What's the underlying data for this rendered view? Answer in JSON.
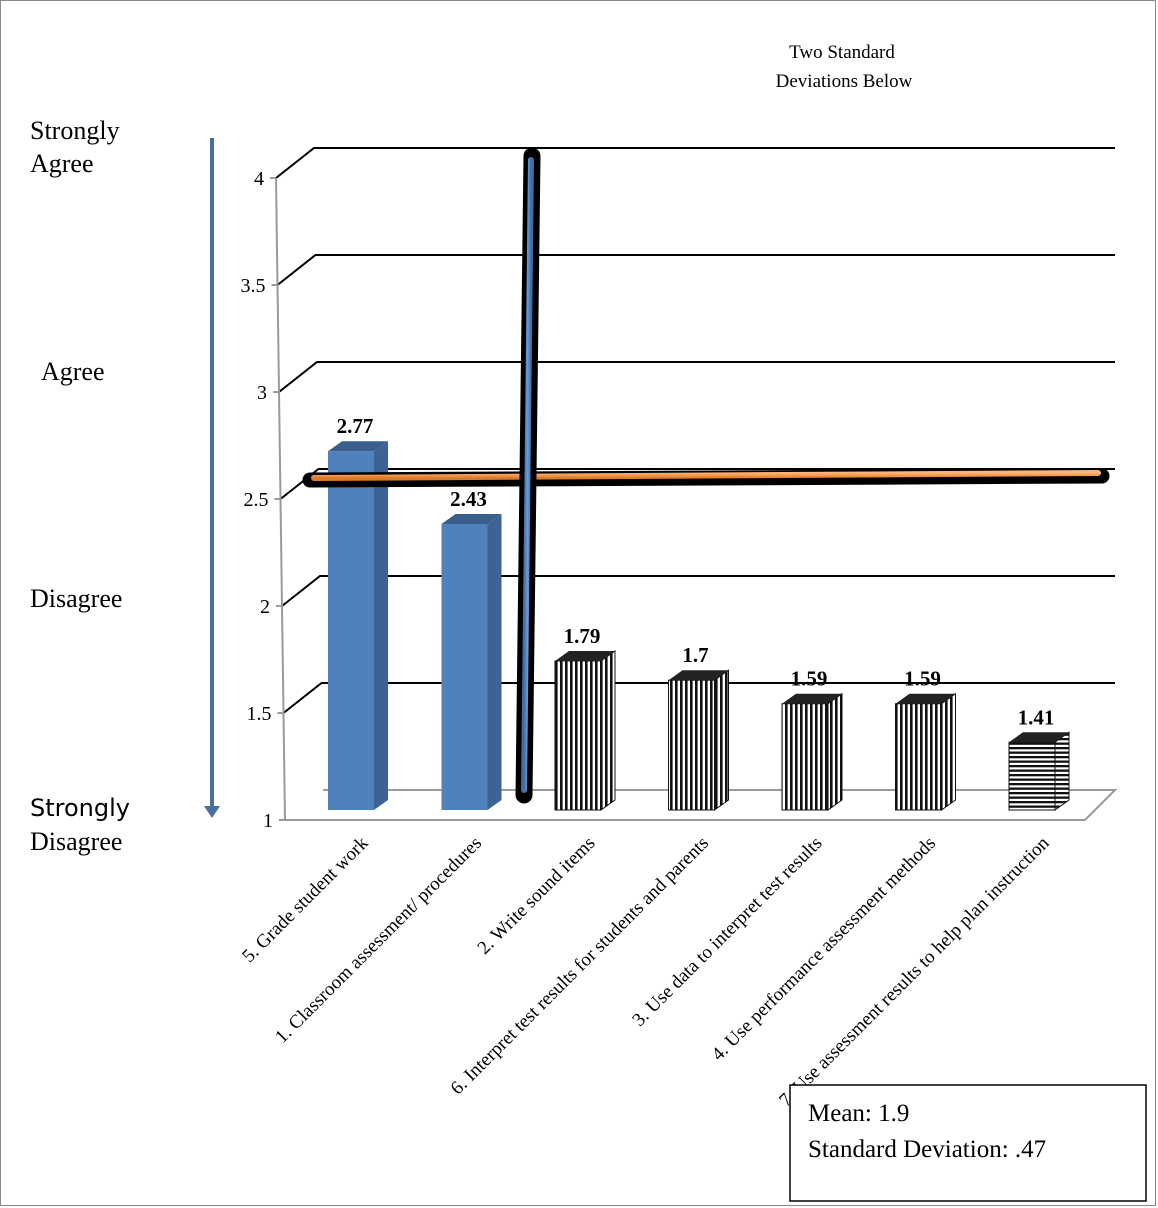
{
  "annotation_top": [
    "Two Standard",
    "Deviations Below"
  ],
  "scale_labels": {
    "strongly_agree": [
      "Strongly",
      "Agree"
    ],
    "agree": "Agree",
    "disagree": "Disagree",
    "strongly_disagree": [
      "Strongly",
      "Disagree"
    ]
  },
  "stats_box": {
    "mean": "Mean:  1.9",
    "sd": "Standard Deviation: .47"
  },
  "colors": {
    "blue_bar": "#4f81bd",
    "threshold_line": "#f79646",
    "divider_line": "#4f81bd",
    "scale_arrow": "#4a6e9e"
  },
  "chart_data": {
    "type": "bar",
    "ylim": [
      1,
      4
    ],
    "yticks": [
      "1",
      "1.5",
      "2",
      "2.5",
      "3",
      "3.5",
      "4"
    ],
    "grid": true,
    "categories": [
      "5. Grade student work",
      "1. Classroom assessment/ procedures",
      "2. Write sound items",
      "6. Interpret test results for students and parents",
      "3. Use data to interpret test results",
      "4. Use performance assessment methods",
      "7. Use assessment results to help plan instruction"
    ],
    "values": [
      2.77,
      2.43,
      1.79,
      1.7,
      1.59,
      1.59,
      1.41
    ],
    "data_labels": [
      "2.77",
      "2.43",
      "1.79",
      "1.7",
      "1.59",
      "1.59",
      "1.41"
    ],
    "bar_styles": [
      "solid",
      "solid",
      "vstripe",
      "vstripe",
      "vstripe",
      "vstripe",
      "hstripe"
    ],
    "threshold": 2.56
  }
}
